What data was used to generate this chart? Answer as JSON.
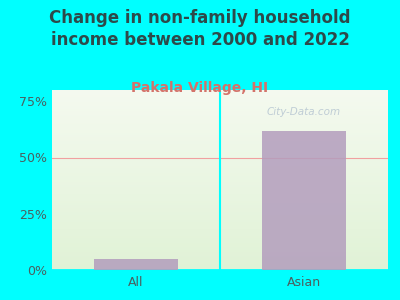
{
  "title": "Change in non-family household\nincome between 2000 and 2022",
  "subtitle": "Pakala Village, HI",
  "categories": [
    "All",
    "Asian"
  ],
  "values": [
    5,
    62
  ],
  "bar_color": "#b39dbd",
  "background_color": "#00ffff",
  "plot_bg_gradient_top": "#f8faf0",
  "plot_bg_gradient_bottom": "#e8f5e0",
  "title_color": "#2d4a4a",
  "subtitle_color": "#d4736a",
  "tick_label_color": "#4a6060",
  "ylim": [
    0,
    80
  ],
  "yticks": [
    0,
    25,
    50,
    75
  ],
  "ytick_labels": [
    "0%",
    "25%",
    "50%",
    "75%"
  ],
  "grid_color": "#f0a0a0",
  "watermark": "City-Data.com",
  "title_fontsize": 12,
  "subtitle_fontsize": 10,
  "bar_alpha": 0.85
}
